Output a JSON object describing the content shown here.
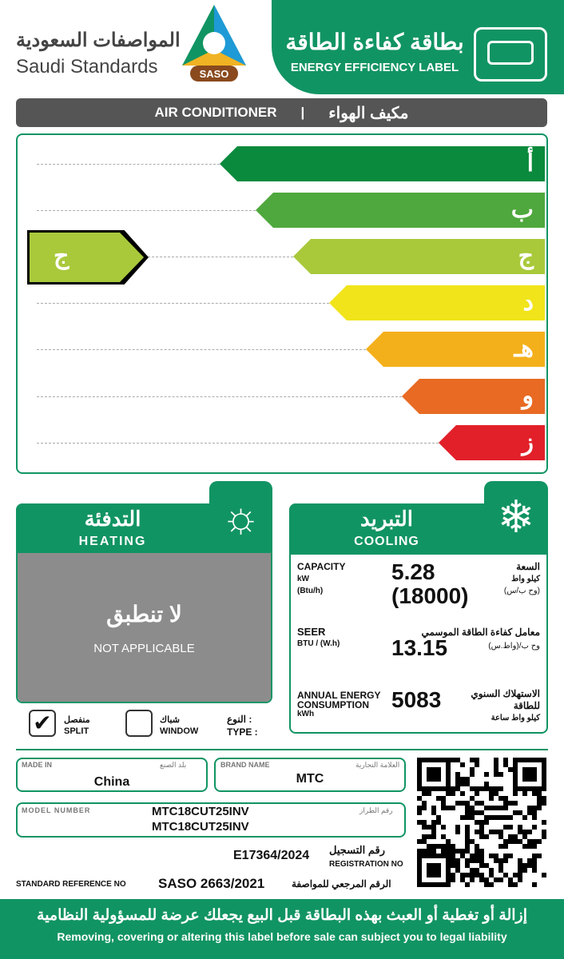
{
  "header": {
    "org_ar": "المواصفات السعودية",
    "org_en": "Saudi Standards",
    "logo_text": "SASO",
    "label_ar": "بطاقة كفاءة الطاقة",
    "label_en": "ENERGY EFFICIENCY LABEL"
  },
  "product": {
    "en": "AIR CONDITIONER",
    "sep": "|",
    "ar": "مكيف الهواء"
  },
  "scale": {
    "classes": [
      {
        "l": "أ",
        "c": "#0a8a3c"
      },
      {
        "l": "ب",
        "c": "#4fa83d"
      },
      {
        "l": "ج",
        "c": "#a9c93b"
      },
      {
        "l": "د",
        "c": "#f1e41b"
      },
      {
        "l": "هـ",
        "c": "#f4b01b"
      },
      {
        "l": "و",
        "c": "#e86a23"
      },
      {
        "l": "ز",
        "c": "#e2202a"
      }
    ],
    "rating": "ج",
    "rating_color": "#a9c93b"
  },
  "heating": {
    "ar": "التدفئة",
    "en": "HEATING",
    "na_ar": "لا تنطبق",
    "na_en": "NOT APPLICABLE"
  },
  "cooling": {
    "ar": "التبريد",
    "en": "COOLING",
    "capacity": {
      "en": "CAPACITY",
      "u1": "kW",
      "u2": "(Btu/h)",
      "v1": "5.28",
      "v2": "(18000)",
      "ar": "السعة",
      "ar_u1": "كيلو واط",
      "ar_u2": "(وح ب/س)"
    },
    "seer": {
      "en": "SEER",
      "u": "BTU / (W.h)",
      "v": "13.15",
      "ar": "معامل كفاءة الطاقة الموسمي",
      "ar_u": "وح ب/(واط.س)"
    },
    "annual": {
      "en1": "ANNUAL ENERGY",
      "en2": "CONSUMPTION",
      "u": "kWh",
      "v": "5083",
      "ar1": "الاستهلاك السنوي",
      "ar2": "للطاقة",
      "ar_u": "كيلو واط ساعة"
    }
  },
  "type": {
    "ar": "النوع :",
    "en": "TYPE :",
    "split_ar": "منفصل",
    "split_en": "SPLIT",
    "window_ar": "شباك",
    "window_en": "WINDOW",
    "selected": "split"
  },
  "info": {
    "made_in_label": "MADE IN",
    "made_in_ar": "بلد الصنع",
    "made_in": "China",
    "brand_label": "BRAND NAME",
    "brand_ar": "العلامة التجارية",
    "brand": "MTC",
    "model_label": "MODEL NUMBER",
    "model_ar": "رقم الطراز",
    "model1": "MTC18CUT25INV",
    "model2": "MTC18CUT25INV",
    "reg_ar": "رقم التسجيل",
    "reg_en": "REGISTRATION NO",
    "reg": "E17364/2024",
    "std_en": "STANDARD REFERENCE NO",
    "std": "SASO 2663/2021",
    "std_ar": "الرقم المرجعي للمواصفة"
  },
  "footer": {
    "ar": "إزالة أو تغطية أو العبث بهذه البطاقة قبل البيع يجعلك عرضة للمسؤولية النظامية",
    "en": "Removing, covering or altering this label before sale can subject you to legal liability"
  }
}
